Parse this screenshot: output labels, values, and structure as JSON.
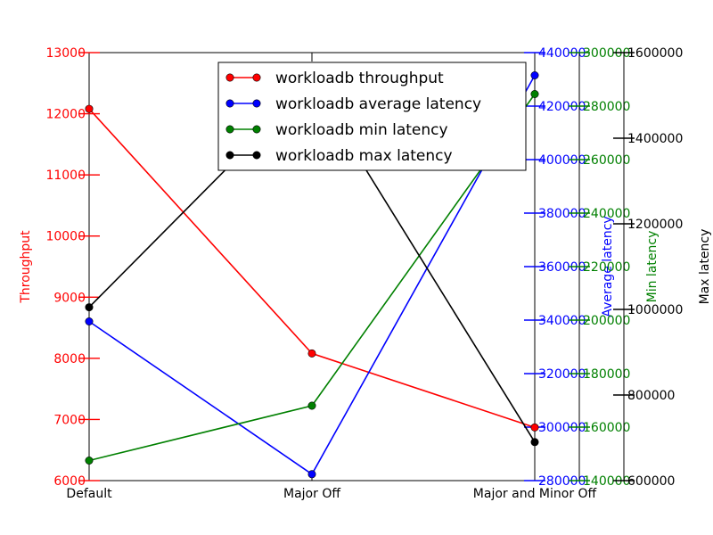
{
  "chart_data": {
    "type": "line",
    "categories": [
      "Default",
      "Major Off",
      "Major and Minor Off"
    ],
    "legend_placement": "top-center",
    "grid": false,
    "axes": [
      {
        "id": "throughput",
        "label": "Throughput",
        "color": "#ff0000",
        "side": "left",
        "ylim": [
          6000,
          13000
        ],
        "ticks": [
          "6000",
          "7000",
          "8000",
          "9000",
          "10000",
          "11000",
          "12000",
          "13000"
        ]
      },
      {
        "id": "average",
        "label": "Average latency",
        "color": "#0000ff",
        "side": "right",
        "ylim": [
          280000,
          440000
        ],
        "ticks": [
          "280000",
          "300000",
          "320000",
          "340000",
          "360000",
          "380000",
          "400000",
          "420000",
          "440000"
        ]
      },
      {
        "id": "min",
        "label": "Min latency",
        "color": "#008000",
        "side": "right",
        "ylim": [
          140000,
          300000
        ],
        "ticks": [
          "140000",
          "160000",
          "180000",
          "200000",
          "220000",
          "240000",
          "260000",
          "280000",
          "300000"
        ]
      },
      {
        "id": "max",
        "label": "Max latency",
        "color": "#000000",
        "side": "right",
        "ylim": [
          600000,
          1600000
        ],
        "ticks": [
          "600000",
          "800000",
          "1000000",
          "1200000",
          "1400000",
          "1600000"
        ]
      }
    ],
    "series": [
      {
        "name": "workloadb throughput",
        "axis": "throughput",
        "color": "#ff0000",
        "values": [
          12080,
          8080,
          6870
        ]
      },
      {
        "name": "workloadb average latency",
        "axis": "average",
        "color": "#0000ff",
        "values": [
          339500,
          282400,
          431500
        ]
      },
      {
        "name": "workloadb min latency",
        "axis": "min",
        "color": "#008000",
        "values": [
          147500,
          168000,
          284500
        ]
      },
      {
        "name": "workloadb max latency",
        "axis": "max",
        "color": "#000000",
        "values": [
          1005000,
          1530000,
          690000
        ]
      }
    ]
  }
}
